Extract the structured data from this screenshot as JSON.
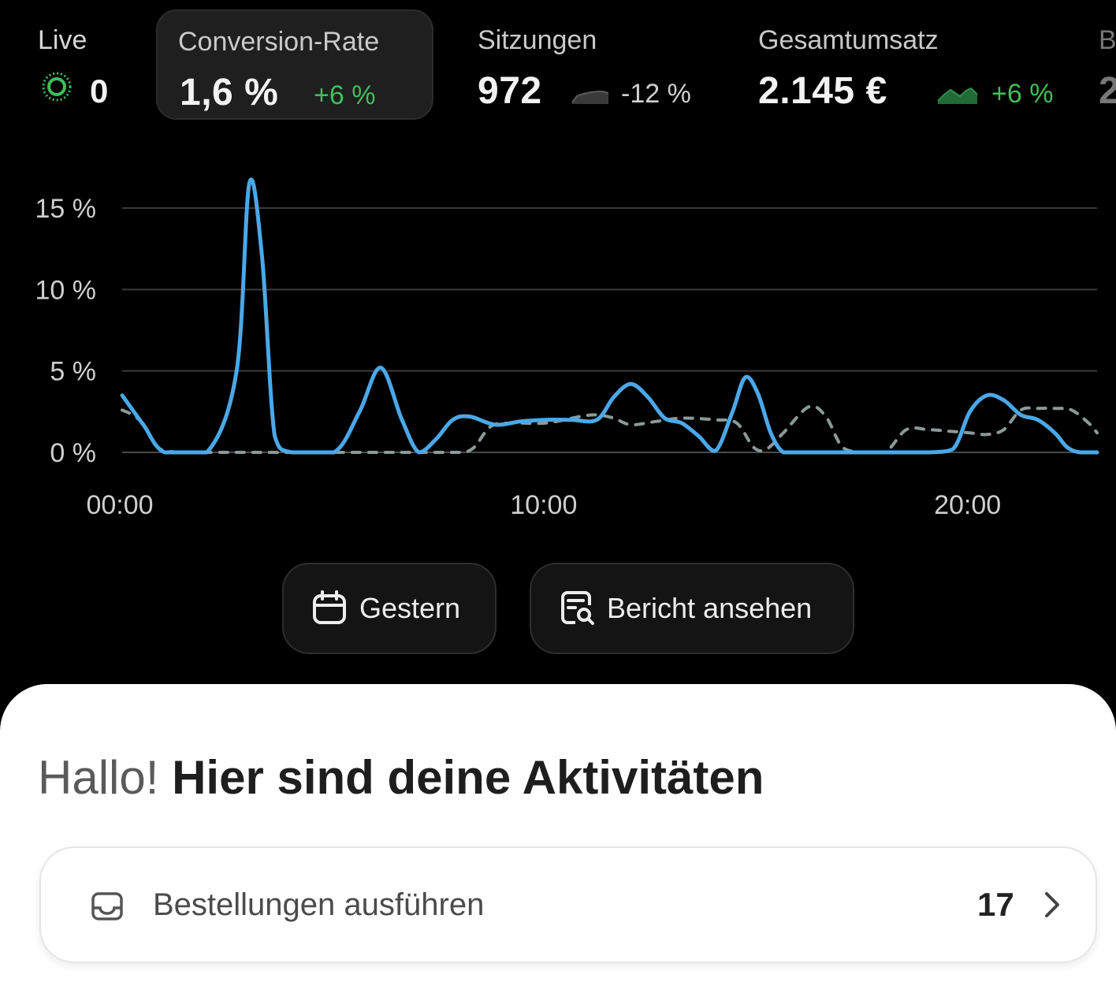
{
  "metrics": {
    "live": {
      "label": "Live",
      "value": "0"
    },
    "conversion": {
      "label": "Conversion-Rate",
      "value": "1,6 %",
      "delta": "+6 %"
    },
    "sessions": {
      "label": "Sitzungen",
      "value": "972",
      "delta": "-12 %"
    },
    "revenue": {
      "label": "Gesamtumsatz",
      "value": "2.145 €",
      "delta": "+6 %"
    },
    "next_partial": {
      "label": "B",
      "value": "2"
    }
  },
  "colors": {
    "accent_line": "#4aa8e8",
    "comparison_line": "#8a9a98",
    "positive": "#3fbf5a",
    "grid": "#3a3a3a"
  },
  "chart_data": {
    "type": "line",
    "x_unit": "hour",
    "xlim": [
      0,
      23
    ],
    "ylim": [
      0,
      15
    ],
    "y_ticks": [
      "0 %",
      "5 %",
      "10 %",
      "15 %"
    ],
    "y_tick_values": [
      0,
      5,
      10,
      15
    ],
    "x_ticks": [
      "00:00",
      "10:00",
      "20:00"
    ],
    "x_tick_values": [
      0,
      10,
      20
    ],
    "grid": true,
    "series": [
      {
        "style": "solid",
        "x": [
          0,
          0.5,
          1.0,
          2.0,
          2.7,
          3.0,
          3.3,
          3.6,
          4.0,
          5.0,
          5.6,
          6.1,
          6.6,
          7.0,
          7.4,
          7.8,
          8.2,
          8.8,
          9.4,
          10.0,
          10.6,
          11.2,
          11.6,
          12.0,
          12.4,
          12.8,
          13.2,
          13.6,
          14.0,
          14.4,
          14.7,
          15.0,
          15.3,
          15.6,
          16.0,
          17.0,
          18.0,
          19.0,
          19.6,
          20.0,
          20.4,
          20.8,
          21.2,
          21.6,
          22.0,
          22.3,
          22.6,
          23.0
        ],
        "y": [
          3.5,
          1.7,
          0,
          0,
          5,
          16.5,
          12,
          1,
          0,
          0,
          2.5,
          5.2,
          2,
          0,
          0.8,
          2,
          2.2,
          1.7,
          1.9,
          2.0,
          2.0,
          2.0,
          3.4,
          4.2,
          3.4,
          2.1,
          1.8,
          1.0,
          0.1,
          2.5,
          4.6,
          3.6,
          1.2,
          0,
          0,
          0,
          0,
          0,
          0.2,
          2.5,
          3.5,
          3.2,
          2.3,
          2.0,
          1.2,
          0.3,
          0,
          0
        ]
      },
      {
        "style": "dashed",
        "x": [
          0,
          0.4,
          0.9,
          1.5,
          2.5,
          3.5,
          4.5,
          5.5,
          6.5,
          7.5,
          8.0,
          8.3,
          8.7,
          9.2,
          10.0,
          10.8,
          11.2,
          11.6,
          12.0,
          12.6,
          13.2,
          14.0,
          14.5,
          14.9,
          15.2,
          15.6,
          16.2,
          16.6,
          17.0,
          17.5,
          18.0,
          18.5,
          19.0,
          19.5,
          20.0,
          20.4,
          20.8,
          21.2,
          21.6,
          22.0,
          22.4,
          22.8,
          23.0
        ],
        "y": [
          2.6,
          2.0,
          0.2,
          0,
          0,
          0,
          0,
          0,
          0,
          0,
          0,
          0.3,
          1.6,
          1.8,
          1.8,
          2.2,
          2.3,
          2.1,
          1.7,
          1.9,
          2.1,
          2.0,
          1.8,
          0.3,
          0.2,
          1.2,
          2.8,
          2.2,
          0.3,
          0,
          0,
          1.4,
          1.4,
          1.3,
          1.2,
          1.1,
          1.4,
          2.6,
          2.7,
          2.7,
          2.6,
          1.8,
          1.2
        ]
      }
    ]
  },
  "actions": {
    "yesterday_label": "Gestern",
    "report_label": "Bericht ansehen"
  },
  "sheet": {
    "greeting_hello": "Hallo!",
    "greeting_title": "Hier sind deine Aktivitäten",
    "task": {
      "label": "Bestellungen ausführen",
      "count": "17"
    }
  }
}
